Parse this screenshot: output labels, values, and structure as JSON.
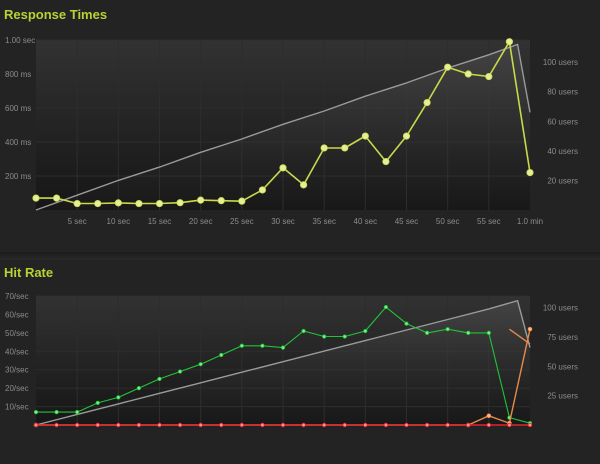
{
  "colors": {
    "accent": "#b5d334",
    "users_line": "#9a9a9a",
    "response_line": "#c9d94a",
    "hits_line": "#22c33a",
    "errors_line": "#e0242c",
    "timeouts_line": "#e8894b"
  },
  "chart_data": [
    {
      "type": "line",
      "title": "Response Times",
      "x_ticks": [
        "5 sec",
        "10 sec",
        "15 sec",
        "20 sec",
        "25 sec",
        "30 sec",
        "35 sec",
        "40 sec",
        "45 sec",
        "50 sec",
        "55 sec",
        "1.0 min"
      ],
      "y_left_ticks": [
        "200 ms",
        "400 ms",
        "600 ms",
        "800 ms",
        "1.00 sec"
      ],
      "y_right_ticks": [
        "20 users",
        "40 users",
        "60 users",
        "80 users",
        "100 users"
      ],
      "xlim": [
        0,
        60
      ],
      "ylim_left": [
        0,
        1000
      ],
      "ylim_right": [
        0,
        115
      ],
      "grid": true,
      "series": [
        {
          "key": "users",
          "axis": "right",
          "x": [
            0,
            5,
            10,
            15,
            20,
            25,
            30,
            35,
            40,
            45,
            50,
            55,
            58.5,
            60
          ],
          "y": [
            0,
            10,
            20,
            29,
            39,
            48,
            58,
            67,
            77,
            86,
            96,
            105,
            112,
            66
          ]
        },
        {
          "key": "response_time",
          "axis": "left",
          "x": [
            0,
            2.5,
            5,
            7.5,
            10,
            12.5,
            15,
            17.5,
            20,
            22.5,
            25,
            27.5,
            30,
            32.5,
            35,
            37.5,
            40,
            42.5,
            45,
            47.5,
            50,
            52.5,
            55,
            57.5,
            60
          ],
          "y": [
            70,
            70,
            38,
            38,
            42,
            38,
            38,
            43,
            58,
            55,
            52,
            118,
            248,
            148,
            365,
            365,
            435,
            285,
            435,
            632,
            840,
            800,
            785,
            990,
            220
          ]
        }
      ]
    },
    {
      "type": "line",
      "title": "Hit Rate",
      "x_ticks": [],
      "y_left_ticks": [
        "10/sec",
        "20/sec",
        "30/sec",
        "40/sec",
        "50/sec",
        "60/sec",
        "70/sec"
      ],
      "y_right_ticks": [
        "25 users",
        "50 users",
        "75 users",
        "100 users"
      ],
      "xlim": [
        0,
        60
      ],
      "ylim_left": [
        0,
        70
      ],
      "ylim_right": [
        0,
        110
      ],
      "grid": true,
      "series": [
        {
          "key": "users",
          "axis": "right",
          "x": [
            0,
            5,
            10,
            15,
            20,
            25,
            30,
            35,
            40,
            45,
            50,
            55,
            58.5,
            60
          ],
          "y": [
            0,
            9,
            18,
            27,
            36,
            45,
            54,
            63,
            72,
            81,
            90,
            99,
            106,
            66
          ]
        },
        {
          "key": "hits",
          "axis": "left",
          "x": [
            0,
            2.5,
            5,
            7.5,
            10,
            12.5,
            15,
            17.5,
            20,
            22.5,
            25,
            27.5,
            30,
            32.5,
            35,
            37.5,
            40,
            42.5,
            45,
            47.5,
            50,
            52.5,
            55,
            57.5,
            60
          ],
          "y": [
            7,
            7,
            7,
            12,
            15,
            20,
            25,
            29,
            33,
            38,
            43,
            43,
            42,
            51,
            48,
            48,
            51,
            64,
            55,
            50,
            52,
            50,
            50,
            4,
            1
          ]
        },
        {
          "key": "timeouts",
          "axis": "left",
          "x": [
            0,
            52.5,
            55,
            57.5,
            60
          ],
          "y": [
            0,
            0,
            5,
            1,
            52
          ]
        },
        {
          "key": "timeouts_drop",
          "axis": "left",
          "x": [
            57.5,
            60
          ],
          "y": [
            52,
            44
          ]
        },
        {
          "key": "errors",
          "axis": "left",
          "x": [
            0,
            2.5,
            5,
            7.5,
            10,
            12.5,
            15,
            17.5,
            20,
            22.5,
            25,
            27.5,
            30,
            32.5,
            35,
            37.5,
            40,
            42.5,
            45,
            47.5,
            50,
            52.5,
            55,
            57.5,
            60
          ],
          "y": [
            0,
            0,
            0,
            0,
            0,
            0,
            0,
            0,
            0,
            0,
            0,
            0,
            0,
            0,
            0,
            0,
            0,
            0,
            0,
            0,
            0,
            0,
            0,
            0,
            0
          ]
        }
      ]
    }
  ]
}
